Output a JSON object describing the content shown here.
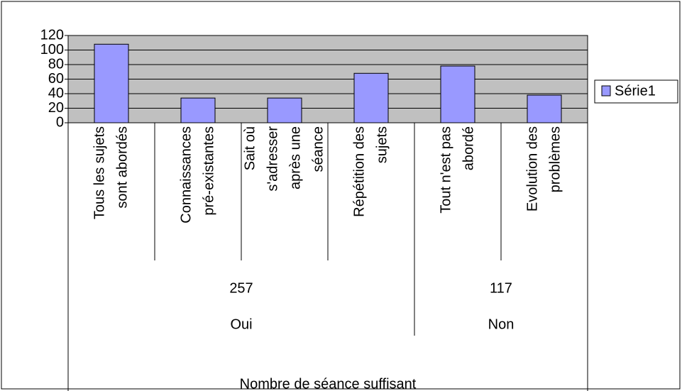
{
  "chart_data": {
    "type": "bar",
    "color": "#9999ff",
    "ylim": [
      0,
      120
    ],
    "yticks": [
      0,
      20,
      40,
      60,
      80,
      100,
      120
    ],
    "grid": true,
    "legend": {
      "position": "right",
      "name": "Série1"
    },
    "category_title": "Nombre de séance suffisant",
    "groups": [
      {
        "name": "Oui",
        "count": 257,
        "categories": [
          [
            "Tous les sujets",
            "sont abordés"
          ],
          [
            "Connaissances",
            "pré-existantes"
          ],
          [
            "Sait où",
            "s'adresser",
            "après une",
            "séance"
          ],
          [
            "Répétition des",
            "sujets"
          ]
        ],
        "values": [
          108,
          34,
          34,
          68
        ]
      },
      {
        "name": "Non",
        "count": 117,
        "categories": [
          [
            "Tout n'est pas",
            "abordé"
          ],
          [
            "Evolution des",
            "problèmes"
          ]
        ],
        "values": [
          78,
          38
        ]
      }
    ]
  }
}
